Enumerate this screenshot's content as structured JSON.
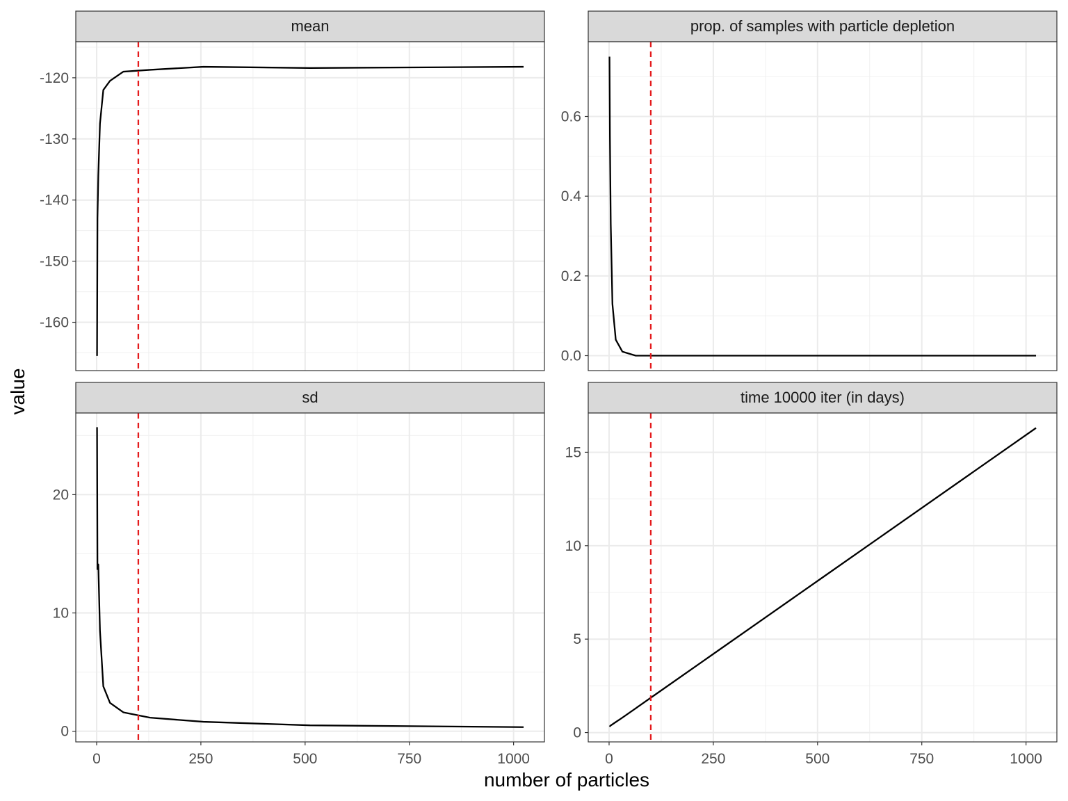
{
  "chart_data": {
    "type": "line",
    "xlabel": "number of particles",
    "ylabel": "value",
    "xlim": [
      -50,
      1074
    ],
    "x_ticks": [
      0,
      250,
      500,
      750,
      1000
    ],
    "x_tick_labels": [
      "0",
      "250",
      "500",
      "750",
      "1000"
    ],
    "reference_line": {
      "x": 100,
      "color": "#e41a1c",
      "style": "dashed"
    },
    "line_color": "#000000",
    "grid": true,
    "panels": [
      {
        "title": "mean",
        "ylim": [
          -167.9,
          -114.1
        ],
        "y_ticks": [
          -160,
          -150,
          -140,
          -130,
          -120
        ],
        "y_tick_labels": [
          "-160",
          "-150",
          "-140",
          "-130",
          "-120"
        ],
        "x": [
          1,
          2,
          4,
          8,
          16,
          32,
          64,
          128,
          256,
          512,
          1024
        ],
        "y": [
          -165.5,
          -143,
          -136,
          -127.5,
          -122,
          -120.5,
          -119,
          -118.7,
          -118.2,
          -118.4,
          -118.2
        ]
      },
      {
        "title": "prop. of samples with particle depletion",
        "ylim": [
          -0.0375,
          0.7875
        ],
        "y_ticks": [
          0.0,
          0.2,
          0.4,
          0.6
        ],
        "y_tick_labels": [
          "0.0",
          "0.2",
          "0.4",
          "0.6"
        ],
        "x": [
          1,
          2,
          4,
          8,
          16,
          32,
          64,
          128,
          256,
          512,
          1024
        ],
        "y": [
          0.75,
          0.55,
          0.33,
          0.13,
          0.04,
          0.01,
          0.0,
          0.0,
          0.0,
          0.0,
          0.0
        ]
      },
      {
        "title": "sd",
        "ylim": [
          -0.9,
          26.9
        ],
        "y_ticks": [
          0,
          10,
          20
        ],
        "y_tick_labels": [
          "0",
          "10",
          "20"
        ],
        "x": [
          1,
          2,
          4,
          8,
          16,
          32,
          64,
          128,
          256,
          512,
          1024
        ],
        "y": [
          25.7,
          13.7,
          14.1,
          8.5,
          3.8,
          2.4,
          1.6,
          1.15,
          0.8,
          0.5,
          0.35
        ]
      },
      {
        "title": "time 10000 iter (in days)",
        "ylim": [
          -0.5,
          17.1
        ],
        "y_ticks": [
          0,
          5,
          10,
          15
        ],
        "y_tick_labels": [
          "0",
          "5",
          "10",
          "15"
        ],
        "x": [
          1,
          2,
          4,
          8,
          16,
          32,
          64,
          128,
          256,
          512,
          1024
        ],
        "y": [
          0.32,
          0.34,
          0.38,
          0.44,
          0.56,
          0.8,
          1.3,
          2.3,
          4.3,
          8.3,
          16.3
        ]
      }
    ]
  }
}
